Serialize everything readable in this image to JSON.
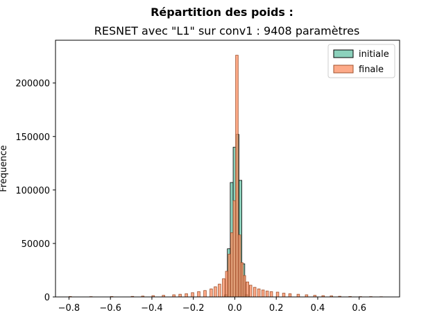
{
  "chart_data": {
    "type": "bar",
    "suptitle": "Répartition des poids :",
    "title": "RESNET avec \"L1\" sur conv1 : 9408 paramètres",
    "xlabel": "",
    "ylabel": "Fréquence",
    "xlim": [
      -0.865,
      0.795
    ],
    "ylim": [
      0,
      240000
    ],
    "xticks": [
      -0.8,
      -0.6,
      -0.4,
      -0.2,
      0.0,
      0.2,
      0.4,
      0.6
    ],
    "xtick_labels": [
      "−0.8",
      "−0.6",
      "−0.4",
      "−0.2",
      "0.0",
      "0.2",
      "0.4",
      "0.6"
    ],
    "yticks": [
      0,
      50000,
      100000,
      150000,
      200000
    ],
    "ytick_labels": [
      "0",
      "50000",
      "100000",
      "150000",
      "200000"
    ],
    "grid": false,
    "legend_position": "top-right",
    "series": [
      {
        "name": "initiale",
        "color": "#66c2a5",
        "edgecolor": "#000000",
        "bin_width": 0.014,
        "bins": [
          [
            -0.05,
            2000
          ],
          [
            -0.036,
            45000
          ],
          [
            -0.022,
            107000
          ],
          [
            -0.008,
            140000
          ],
          [
            0.006,
            152000
          ],
          [
            0.02,
            109000
          ],
          [
            0.034,
            31000
          ],
          [
            0.048,
            2000
          ]
        ]
      },
      {
        "name": "finale",
        "color": "#fc8d62",
        "edgecolor": "#a0522d",
        "bin_width": 0.0123,
        "bins": [
          [
            -0.8,
            400
          ],
          [
            -0.7,
            300
          ],
          [
            -0.6,
            400
          ],
          [
            -0.5,
            500
          ],
          [
            -0.45,
            800
          ],
          [
            -0.4,
            1200
          ],
          [
            -0.35,
            1500
          ],
          [
            -0.3,
            2000
          ],
          [
            -0.27,
            2500
          ],
          [
            -0.24,
            3000
          ],
          [
            -0.21,
            4000
          ],
          [
            -0.18,
            5000
          ],
          [
            -0.15,
            6000
          ],
          [
            -0.12,
            7500
          ],
          [
            -0.1,
            9500
          ],
          [
            -0.08,
            12000
          ],
          [
            -0.06,
            17000
          ],
          [
            -0.045,
            24000
          ],
          [
            -0.032,
            40000
          ],
          [
            -0.02,
            60000
          ],
          [
            -0.008,
            90000
          ],
          [
            0.004,
            226000
          ],
          [
            0.016,
            58000
          ],
          [
            0.028,
            32000
          ],
          [
            0.04,
            20000
          ],
          [
            0.055,
            14000
          ],
          [
            0.07,
            11000
          ],
          [
            0.09,
            9000
          ],
          [
            0.11,
            7500
          ],
          [
            0.13,
            6500
          ],
          [
            0.15,
            5500
          ],
          [
            0.17,
            5000
          ],
          [
            0.2,
            4500
          ],
          [
            0.23,
            3500
          ],
          [
            0.26,
            3000
          ],
          [
            0.3,
            2500
          ],
          [
            0.34,
            2000
          ],
          [
            0.38,
            1500
          ],
          [
            0.42,
            1200
          ],
          [
            0.46,
            1000
          ],
          [
            0.5,
            600
          ],
          [
            0.55,
            400
          ],
          [
            0.6,
            300
          ],
          [
            0.65,
            300
          ],
          [
            0.7,
            200
          ]
        ]
      }
    ]
  }
}
